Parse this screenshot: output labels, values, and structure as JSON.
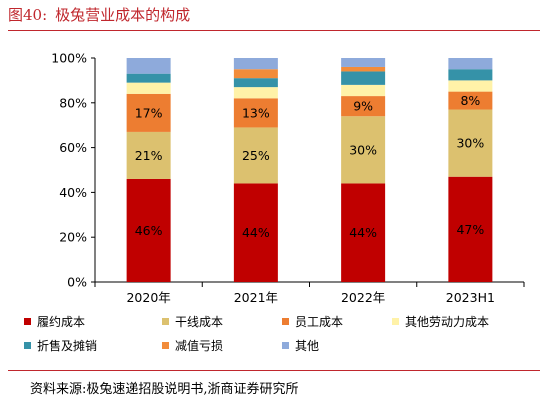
{
  "figure": {
    "number": "图40:",
    "title": "极兔营业成本的构成"
  },
  "source": "资料来源:极兔速递招股说明书,浙商证券研究所",
  "colors": {
    "履约成本": "#c00000",
    "干线成本": "#dcc16f",
    "员工成本": "#ed7d31",
    "其他劳动力成本": "#fff2a8",
    "折售及摊销": "#3592a8",
    "减值亏损": "#f28c3a",
    "其他": "#8eaadb"
  },
  "chart_data": {
    "type": "bar",
    "stacked": true,
    "categories": [
      "2020年",
      "2021年",
      "2022年",
      "2023H1"
    ],
    "ylim": [
      0,
      100
    ],
    "ytick_labels": [
      "0%",
      "20%",
      "40%",
      "60%",
      "80%",
      "100%"
    ],
    "series": [
      {
        "name": "履约成本",
        "values": [
          46,
          44,
          44,
          47
        ],
        "labels": [
          "46%",
          "44%",
          "44%",
          "47%"
        ]
      },
      {
        "name": "干线成本",
        "values": [
          21,
          25,
          30,
          30
        ],
        "labels": [
          "21%",
          "25%",
          "30%",
          "30%"
        ]
      },
      {
        "name": "员工成本",
        "values": [
          17,
          13,
          9,
          8
        ],
        "labels": [
          "17%",
          "13%",
          "9%",
          "8%"
        ]
      },
      {
        "name": "其他劳动力成本",
        "values": [
          5,
          5,
          5,
          5
        ]
      },
      {
        "name": "折售及摊销",
        "values": [
          4,
          4,
          6,
          5
        ]
      },
      {
        "name": "减值亏损",
        "values": [
          0,
          4,
          2,
          0
        ]
      },
      {
        "name": "其他",
        "values": [
          7,
          5,
          4,
          5
        ]
      }
    ]
  }
}
